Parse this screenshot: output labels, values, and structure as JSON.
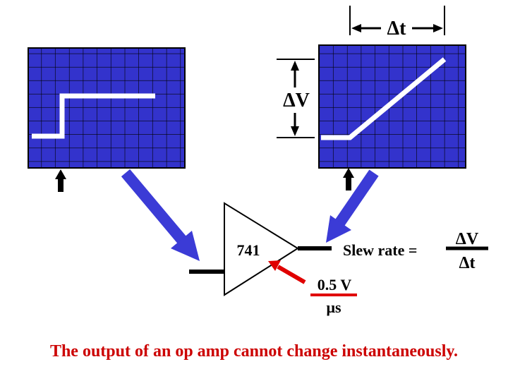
{
  "labels": {
    "delta_t_top": "Δt",
    "delta_v_side": "ΔV",
    "opamp_model": "741",
    "slew_rate": "Slew rate =",
    "fraction_numerator": "ΔV",
    "fraction_denominator": "Δt",
    "rate_numerator": "0.5 V",
    "rate_denominator": "μs",
    "caption": "The output of an op amp cannot change instantaneously."
  },
  "colors": {
    "screen": "#3333cc",
    "grid": "#000000",
    "trace": "#ffffff",
    "arrow_blue": "#3b3bd6",
    "arrow_red": "#e00000",
    "caption": "#cc0000",
    "ink": "#000000"
  }
}
